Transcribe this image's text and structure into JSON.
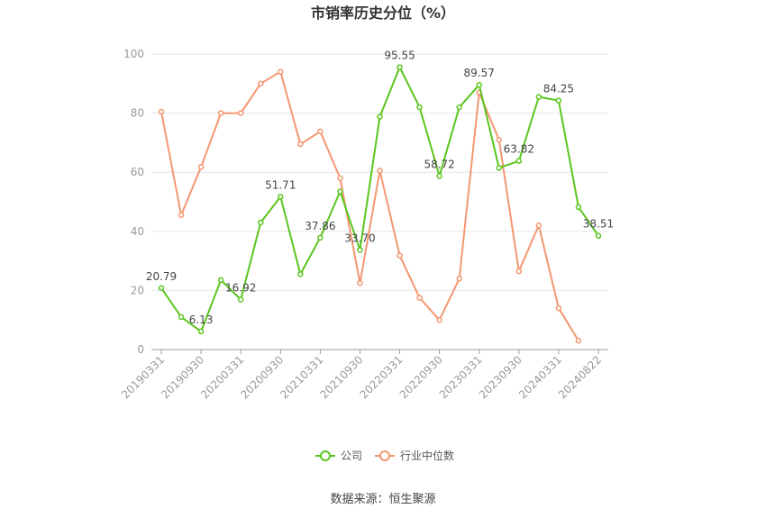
{
  "chart_data": {
    "type": "line",
    "title": "市销率历史分位（%）",
    "categories": [
      "20190331",
      null,
      "20190930",
      null,
      "20200331",
      null,
      "20200930",
      null,
      "20210331",
      null,
      "20210930",
      null,
      "20220331",
      null,
      "20220930",
      null,
      "20230331",
      null,
      "20230930",
      null,
      "20240331",
      null,
      "20240822"
    ],
    "series": [
      {
        "name": "公司",
        "color": "#5ac61e",
        "values": [
          20.79,
          11,
          6.13,
          23.5,
          16.92,
          43,
          51.71,
          25.5,
          37.86,
          53.5,
          33.7,
          78.8,
          95.55,
          82,
          58.72,
          82,
          89.57,
          61.5,
          63.82,
          85.5,
          84.25,
          48.2,
          38.51
        ],
        "value_labels": [
          "20.79",
          null,
          "6.13",
          null,
          "16.92",
          null,
          "51.71",
          null,
          "37.86",
          null,
          "33.70",
          null,
          "95.55",
          null,
          "58.72",
          null,
          "89.57",
          null,
          "63.82",
          null,
          "84.25",
          null,
          "38.51"
        ]
      },
      {
        "name": "行业中位数",
        "color": "#f39770",
        "values": [
          80.5,
          45.5,
          61.8,
          80,
          80,
          90,
          94,
          69.5,
          73.8,
          58,
          22.5,
          60.5,
          31.8,
          17.5,
          10,
          24,
          87,
          71,
          26.5,
          42,
          14,
          3,
          null
        ]
      }
    ],
    "ylim": [
      0,
      100
    ],
    "yticks": [
      0,
      20,
      40,
      60,
      80,
      100
    ],
    "grid": true,
    "legend": "bottom",
    "source": "数据来源：恒生聚源"
  }
}
